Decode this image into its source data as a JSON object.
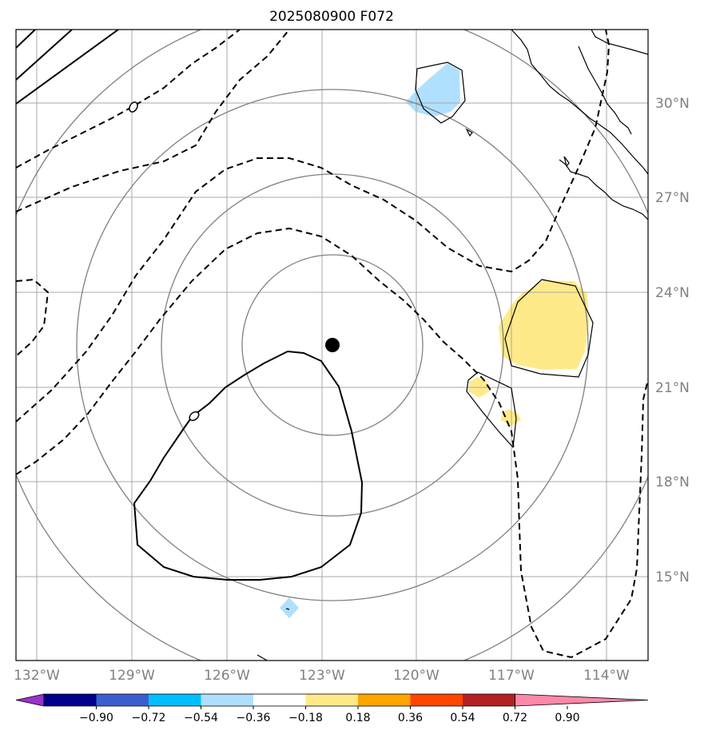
{
  "title": "2025080900 F072",
  "map": {
    "lon_labels": [
      "132°W",
      "129°W",
      "126°W",
      "123°W",
      "120°W",
      "117°W",
      "114°W"
    ],
    "lat_labels": [
      "30°N",
      "27°N",
      "24°N",
      "21°N",
      "18°N",
      "15°N"
    ],
    "contour_labels": [
      "0",
      "0"
    ]
  },
  "colorbar": {
    "tick_labels": [
      "−0.90",
      "−0.72",
      "−0.54",
      "−0.36",
      "−0.18",
      "0.18",
      "0.36",
      "0.54",
      "0.72",
      "0.90"
    ],
    "colors": [
      "#9932cc",
      "#00008b",
      "#3a5fcd",
      "#00bfff",
      "#b0e0ff",
      "#ffffff",
      "#ffea8a",
      "#ffa500",
      "#ff4500",
      "#b22222",
      "#ff88aa"
    ]
  }
}
